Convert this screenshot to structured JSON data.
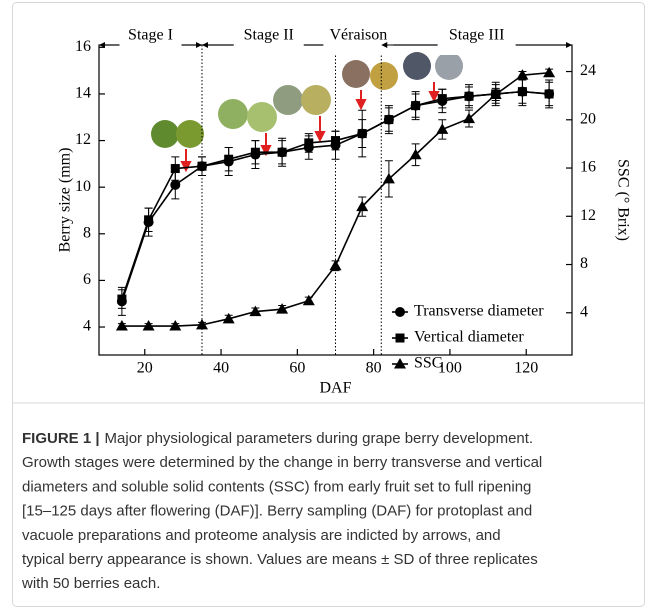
{
  "chart_data": {
    "type": "line",
    "stages": [
      "Stage I",
      "Stage II",
      "Véraison",
      "Stage III"
    ],
    "stage_boundaries": [
      35,
      70,
      82
    ],
    "xlabel": "DAF",
    "ylabel": "Berry size (mm)",
    "y2label": "SSC (° Brix)",
    "x": [
      14,
      21,
      28,
      35,
      42,
      49,
      56,
      63,
      70,
      77,
      84,
      91,
      98,
      105,
      112,
      119,
      126
    ],
    "series": [
      {
        "name": "Transverse diameter",
        "color": "#000000",
        "marker": "circle",
        "values": [
          5.1,
          8.5,
          10.1,
          10.9,
          11.1,
          11.4,
          11.5,
          11.7,
          11.8,
          12.3,
          12.9,
          13.5,
          13.7,
          13.9,
          14.0,
          14.1,
          14.0
        ],
        "errors": [
          0.6,
          0.6,
          0.6,
          0.4,
          0.6,
          0.6,
          0.6,
          0.5,
          0.6,
          1.0,
          0.6,
          0.6,
          0.5,
          0.5,
          0.5,
          0.6,
          0.6
        ]
      },
      {
        "name": "Vertical diameter",
        "color": "#000000",
        "marker": "square",
        "values": [
          5.2,
          8.6,
          10.8,
          10.9,
          11.2,
          11.5,
          11.5,
          11.9,
          12.0,
          12.3,
          12.9,
          13.5,
          13.8,
          13.9,
          14.0,
          14.1,
          14.0
        ],
        "errors": [
          0.4,
          0.5,
          0.5,
          0.4,
          0.5,
          0.5,
          0.5,
          0.4,
          0.4,
          0.6,
          0.5,
          0.5,
          0.4,
          0.4,
          0.4,
          0.5,
          0.5
        ]
      },
      {
        "name": "SSC",
        "color": "#000000",
        "marker": "triangle",
        "axis": "y2",
        "values": [
          2.9,
          2.9,
          2.9,
          3.0,
          3.5,
          4.1,
          4.3,
          5.0,
          7.9,
          12.8,
          15.1,
          17.1,
          19.2,
          20.1,
          22.1,
          23.7,
          23.9
        ],
        "errors": [
          0.2,
          0.2,
          0.2,
          0.2,
          0.3,
          0.3,
          0.3,
          0.3,
          0.4,
          0.8,
          1.5,
          0.9,
          0.8,
          0.7,
          0.5,
          0.3,
          0.3
        ]
      }
    ],
    "xlim": [
      8,
      132
    ],
    "xticks": [
      20,
      40,
      60,
      80,
      100,
      120
    ],
    "ylim": [
      2.8,
      16.1
    ],
    "yticks": [
      4,
      6,
      8,
      10,
      12,
      14,
      16
    ],
    "y2lim": [
      0.5,
      26.2
    ],
    "y2ticks": [
      4,
      8,
      12,
      16,
      20,
      24
    ],
    "legend": "center right"
  },
  "caption": {
    "label": "FIGURE 1 |",
    "lines": [
      "Major physiological parameters during grape berry development.",
      "Growth stages were determined by the change in berry transverse and vertical",
      "diameters and soluble solid contents (SSC) from early fruit set to full ripening",
      "[15–125 days after flowering (DAF)]. Berry sampling (DAF) for protoplast and",
      "vacuole preparations and proteome analysis are indicted by arrows, and",
      "typical berry appearance is shown. Values are means ± SD of three replicates",
      "with 50 berries each."
    ]
  }
}
